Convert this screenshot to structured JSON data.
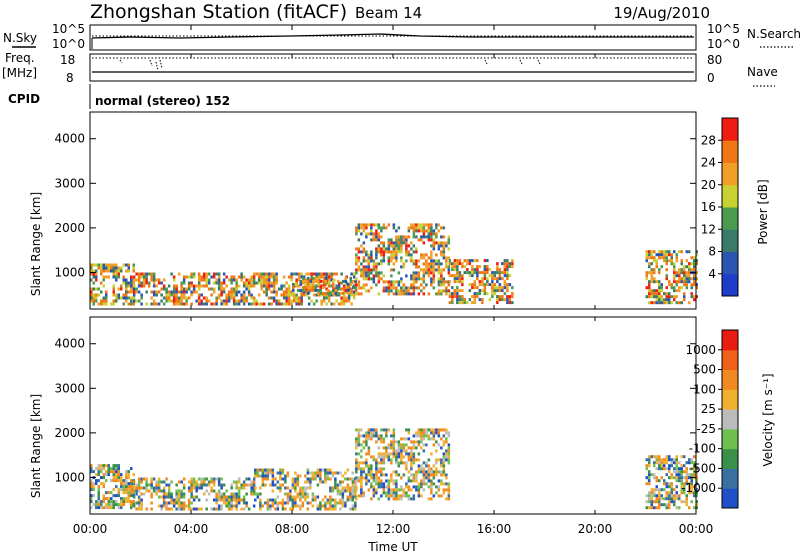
{
  "header": {
    "station": "Zhongshan Station (fitACF)",
    "beam": "Beam 14",
    "date": "19/Aug/2010"
  },
  "aux": {
    "nsky_label": "N.Sky",
    "nsearch_label": "N.Search",
    "freq_label": "Freq.",
    "freq_unit": "[MHz]",
    "nave_label": "Nave",
    "cpid_label": "CPID",
    "mode": "normal (stereo) 152",
    "noise_ticks": [
      "10^5",
      "10^0"
    ],
    "freq_ticks": [
      "18",
      "8"
    ],
    "nave_ticks": [
      "80",
      "0"
    ]
  },
  "x_axis": {
    "label": "Time UT",
    "ticks": [
      "00:00",
      "04:00",
      "08:00",
      "12:00",
      "16:00",
      "20:00",
      "00:00"
    ]
  },
  "chart_data": [
    {
      "type": "heatmap",
      "panel": "power",
      "ylabel": "Slant Range [km]",
      "ylim": [
        180,
        4600
      ],
      "yticks": [
        "1000",
        "2000",
        "3000",
        "4000"
      ],
      "xlim_hours": [
        0,
        24
      ],
      "colorbar": {
        "label": "Power [dB]",
        "ticks": [
          "4",
          "8",
          "12",
          "16",
          "20",
          "24",
          "28"
        ],
        "colors": [
          "#1e3cc8",
          "#2a55b0",
          "#3a7a68",
          "#4a9a50",
          "#c8d232",
          "#f0a028",
          "#f07814",
          "#ee1c12"
        ]
      },
      "echo_regions": [
        {
          "t_start": 0.0,
          "t_end": 1.7,
          "r_min": 300,
          "r_max": 1200,
          "level": "12-24"
        },
        {
          "t_start": 1.7,
          "t_end": 10.5,
          "r_min": 300,
          "r_max": 1000,
          "level": "20-28"
        },
        {
          "t_start": 8.0,
          "t_end": 10.5,
          "r_min": 500,
          "r_max": 900,
          "level": "28"
        },
        {
          "t_start": 10.5,
          "t_end": 14.2,
          "r_min": 500,
          "r_max": 2100,
          "level": "8-24"
        },
        {
          "t_start": 14.2,
          "t_end": 16.7,
          "r_min": 300,
          "r_max": 1300,
          "level": "8-20"
        },
        {
          "t_start": 22.0,
          "t_end": 24.0,
          "r_min": 300,
          "r_max": 1500,
          "level": "8-24"
        }
      ]
    },
    {
      "type": "heatmap",
      "panel": "velocity",
      "ylabel": "Slant Range [km]",
      "ylim": [
        180,
        4600
      ],
      "yticks": [
        "1000",
        "2000",
        "3000",
        "4000"
      ],
      "xlim_hours": [
        0,
        24
      ],
      "colorbar": {
        "label": "Velocity [m s⁻¹]",
        "ticks": [
          "1000",
          "500",
          "100",
          "25",
          "-25",
          "-100",
          "-500",
          "-1000"
        ],
        "colors": [
          "#2050c8",
          "#3a70a0",
          "#3a9048",
          "#70c050",
          "#bcbcbc",
          "#f0b030",
          "#f08a20",
          "#f06018",
          "#e81c10"
        ]
      },
      "echo_regions": [
        {
          "t_start": 0.0,
          "t_end": 1.7,
          "r_min": 300,
          "r_max": 1300,
          "level": "25 to 1000"
        },
        {
          "t_start": 1.7,
          "t_end": 6.5,
          "r_min": 300,
          "r_max": 1000,
          "level": "25 to 500"
        },
        {
          "t_start": 6.5,
          "t_end": 10.5,
          "r_min": 300,
          "r_max": 1200,
          "level": "-100 to -500"
        },
        {
          "t_start": 10.5,
          "t_end": 14.2,
          "r_min": 500,
          "r_max": 2100,
          "level": "-100 to -500"
        },
        {
          "t_start": 22.0,
          "t_end": 24.0,
          "r_min": 300,
          "r_max": 1500,
          "level": "100 to 1000"
        }
      ]
    }
  ]
}
